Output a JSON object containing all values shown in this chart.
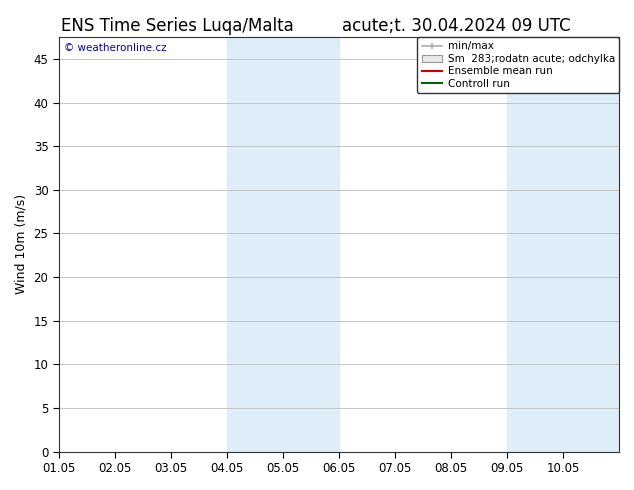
{
  "title_left": "ENS Time Series Luqa/Malta",
  "title_right": "acute;t. 30.04.2024 09 UTC",
  "ylabel": "Wind 10m (m/s)",
  "watermark": "© weatheronline.cz",
  "ylim": [
    0,
    47.5
  ],
  "yticks": [
    0,
    5,
    10,
    15,
    20,
    25,
    30,
    35,
    40,
    45
  ],
  "x_start": "2024-05-01",
  "x_end": "2024-05-11",
  "xtick_labels": [
    "01.05",
    "02.05",
    "03.05",
    "04.05",
    "05.05",
    "06.05",
    "07.05",
    "08.05",
    "09.05",
    "10.05"
  ],
  "xtick_positions": [
    1,
    2,
    3,
    4,
    5,
    6,
    7,
    8,
    9,
    10
  ],
  "shade_bands": [
    {
      "start": 4,
      "end": 6
    },
    {
      "start": 9,
      "end": 11
    }
  ],
  "shade_color": "#ddeef8",
  "background_color": "#ffffff",
  "grid_color": "#bbbbbb",
  "title_fontsize": 12,
  "tick_fontsize": 8.5,
  "label_fontsize": 9,
  "watermark_color": "#0000cc",
  "legend_gray_line": "#aaaaaa",
  "legend_gray_box": "#dddddd",
  "legend_red": "#cc0000",
  "legend_green": "#006600"
}
